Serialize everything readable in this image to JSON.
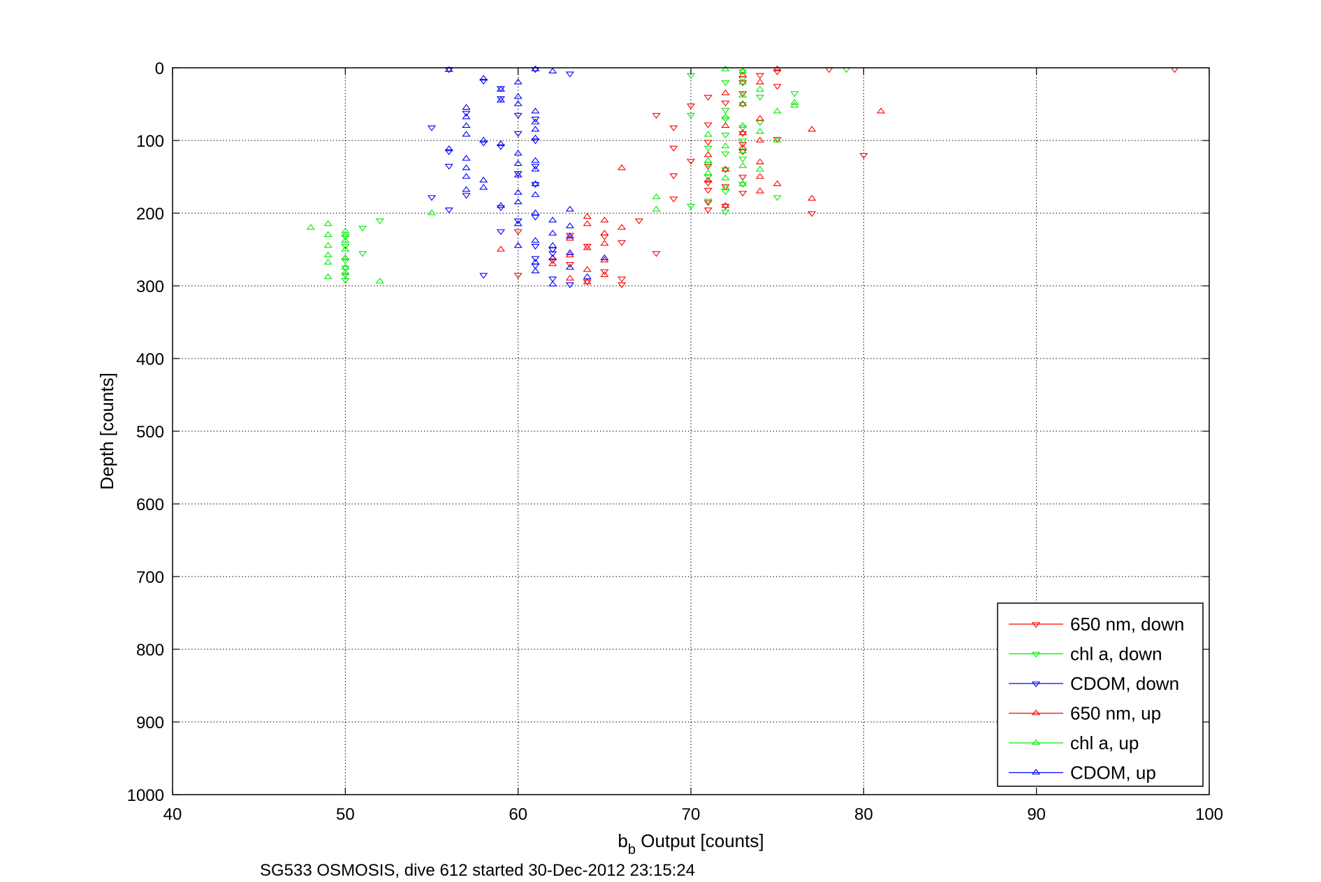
{
  "chart_data": {
    "type": "scatter",
    "title": "",
    "caption": "SG533 OSMOSIS, dive 612 started 30-Dec-2012 23:15:24",
    "xlabel": {
      "main": "b",
      "sub": "b",
      "rest": " Output [counts]"
    },
    "ylabel": "Depth [counts]",
    "xlim": [
      40,
      100
    ],
    "ylim": [
      0,
      1000
    ],
    "y_reversed": true,
    "grid": true,
    "x_ticks": [
      "40",
      "50",
      "60",
      "70",
      "80",
      "90",
      "100"
    ],
    "y_ticks": [
      "0",
      "100",
      "200",
      "300",
      "400",
      "500",
      "600",
      "700",
      "800",
      "900",
      "1000"
    ],
    "legend_position": "bottom-right",
    "series": [
      {
        "name": "650 nm, down",
        "color": "#ff0000",
        "marker": "triangle-down",
        "points": [
          [
            56,
            2
          ],
          [
            75,
            5
          ],
          [
            78,
            2
          ],
          [
            98,
            2
          ],
          [
            74,
            10
          ],
          [
            73,
            20
          ],
          [
            75,
            25
          ],
          [
            73,
            35
          ],
          [
            71,
            40
          ],
          [
            72,
            48
          ],
          [
            70,
            52
          ],
          [
            68,
            65
          ],
          [
            71,
            78
          ],
          [
            69,
            82
          ],
          [
            73,
            90
          ],
          [
            75,
            98
          ],
          [
            71,
            102
          ],
          [
            73,
            105
          ],
          [
            69,
            110
          ],
          [
            73,
            115
          ],
          [
            80,
            120
          ],
          [
            70,
            128
          ],
          [
            71,
            135
          ],
          [
            72,
            140
          ],
          [
            69,
            148
          ],
          [
            73,
            150
          ],
          [
            71,
            158
          ],
          [
            72,
            163
          ],
          [
            71,
            168
          ],
          [
            73,
            172
          ],
          [
            69,
            180
          ],
          [
            71,
            185
          ],
          [
            72,
            190
          ],
          [
            77,
            200
          ],
          [
            71,
            195
          ],
          [
            60,
            225
          ],
          [
            67,
            210
          ],
          [
            63,
            230
          ],
          [
            64,
            245
          ],
          [
            66,
            240
          ],
          [
            68,
            255
          ],
          [
            62,
            265
          ],
          [
            63,
            270
          ],
          [
            65,
            280
          ],
          [
            66,
            290
          ],
          [
            60,
            285
          ],
          [
            64,
            294
          ],
          [
            66,
            298
          ],
          [
            65,
            232
          ]
        ]
      },
      {
        "name": "chl a, down",
        "color": "#00ee00",
        "marker": "triangle-down",
        "points": [
          [
            79,
            2
          ],
          [
            73,
            5
          ],
          [
            70,
            10
          ],
          [
            73,
            15
          ],
          [
            72,
            20
          ],
          [
            76,
            35
          ],
          [
            74,
            40
          ],
          [
            73,
            50
          ],
          [
            72,
            58
          ],
          [
            70,
            65
          ],
          [
            72,
            70
          ],
          [
            74,
            75
          ],
          [
            73,
            82
          ],
          [
            72,
            92
          ],
          [
            73,
            100
          ],
          [
            71,
            110
          ],
          [
            72,
            118
          ],
          [
            73,
            125
          ],
          [
            71,
            132
          ],
          [
            72,
            140
          ],
          [
            71,
            150
          ],
          [
            73,
            160
          ],
          [
            72,
            170
          ],
          [
            75,
            178
          ],
          [
            71,
            183
          ],
          [
            70,
            190
          ],
          [
            72,
            198
          ],
          [
            52,
            210
          ],
          [
            51,
            220
          ],
          [
            50,
            232
          ],
          [
            50,
            245
          ],
          [
            51,
            255
          ],
          [
            50,
            265
          ],
          [
            50,
            275
          ],
          [
            50,
            285
          ],
          [
            50,
            292
          ]
        ]
      },
      {
        "name": "CDOM, down",
        "color": "#0000ff",
        "marker": "triangle-down",
        "points": [
          [
            56,
            2
          ],
          [
            61,
            2
          ],
          [
            63,
            8
          ],
          [
            58,
            18
          ],
          [
            59,
            28
          ],
          [
            59,
            42
          ],
          [
            57,
            62
          ],
          [
            60,
            65
          ],
          [
            61,
            70
          ],
          [
            55,
            82
          ],
          [
            60,
            90
          ],
          [
            61,
            100
          ],
          [
            59,
            108
          ],
          [
            58,
            103
          ],
          [
            56,
            115
          ],
          [
            61,
            135
          ],
          [
            56,
            135
          ],
          [
            60,
            145
          ],
          [
            61,
            160
          ],
          [
            57,
            175
          ],
          [
            55,
            178
          ],
          [
            56,
            195
          ],
          [
            59,
            192
          ],
          [
            61,
            205
          ],
          [
            60,
            210
          ],
          [
            59,
            225
          ],
          [
            61,
            245
          ],
          [
            62,
            250
          ],
          [
            61,
            262
          ],
          [
            61,
            272
          ],
          [
            58,
            285
          ],
          [
            62,
            290
          ],
          [
            63,
            298
          ],
          [
            62,
            255
          ]
        ]
      },
      {
        "name": "650 nm, up",
        "color": "#ff0000",
        "marker": "triangle-up",
        "points": [
          [
            75,
            2
          ],
          [
            73,
            10
          ],
          [
            74,
            20
          ],
          [
            72,
            35
          ],
          [
            73,
            50
          ],
          [
            81,
            60
          ],
          [
            74,
            70
          ],
          [
            72,
            80
          ],
          [
            77,
            85
          ],
          [
            73,
            90
          ],
          [
            74,
            100
          ],
          [
            73,
            110
          ],
          [
            71,
            120
          ],
          [
            74,
            130
          ],
          [
            72,
            140
          ],
          [
            66,
            138
          ],
          [
            74,
            150
          ],
          [
            71,
            155
          ],
          [
            75,
            160
          ],
          [
            74,
            170
          ],
          [
            77,
            180
          ],
          [
            72,
            190
          ],
          [
            64,
            205
          ],
          [
            65,
            210
          ],
          [
            64,
            215
          ],
          [
            66,
            220
          ],
          [
            65,
            228
          ],
          [
            63,
            235
          ],
          [
            65,
            242
          ],
          [
            64,
            248
          ],
          [
            59,
            250
          ],
          [
            63,
            258
          ],
          [
            65,
            265
          ],
          [
            62,
            270
          ],
          [
            64,
            278
          ],
          [
            65,
            285
          ],
          [
            63,
            290
          ],
          [
            64,
            295
          ]
        ]
      },
      {
        "name": "chl a, up",
        "color": "#00ee00",
        "marker": "triangle-up",
        "points": [
          [
            72,
            2
          ],
          [
            73,
            5
          ],
          [
            73,
            20
          ],
          [
            74,
            30
          ],
          [
            73,
            38
          ],
          [
            76,
            48
          ],
          [
            76,
            52
          ],
          [
            75,
            60
          ],
          [
            72,
            68
          ],
          [
            73,
            80
          ],
          [
            74,
            88
          ],
          [
            71,
            92
          ],
          [
            75,
            100
          ],
          [
            72,
            108
          ],
          [
            73,
            115
          ],
          [
            71,
            128
          ],
          [
            73,
            135
          ],
          [
            74,
            140
          ],
          [
            71,
            145
          ],
          [
            72,
            152
          ],
          [
            73,
            160
          ],
          [
            72,
            165
          ],
          [
            68,
            178
          ],
          [
            68,
            195
          ],
          [
            55,
            200
          ],
          [
            49,
            215
          ],
          [
            48,
            220
          ],
          [
            50,
            225
          ],
          [
            49,
            230
          ],
          [
            50,
            238
          ],
          [
            49,
            245
          ],
          [
            50,
            250
          ],
          [
            49,
            258
          ],
          [
            50,
            262
          ],
          [
            49,
            268
          ],
          [
            50,
            275
          ],
          [
            50,
            282
          ],
          [
            49,
            288
          ],
          [
            52,
            294
          ],
          [
            50,
            230
          ]
        ]
      },
      {
        "name": "CDOM, up",
        "color": "#0000ff",
        "marker": "triangle-up",
        "points": [
          [
            61,
            2
          ],
          [
            62,
            5
          ],
          [
            56,
            3
          ],
          [
            58,
            15
          ],
          [
            60,
            20
          ],
          [
            59,
            30
          ],
          [
            60,
            40
          ],
          [
            59,
            45
          ],
          [
            60,
            50
          ],
          [
            57,
            55
          ],
          [
            61,
            60
          ],
          [
            57,
            68
          ],
          [
            61,
            75
          ],
          [
            57,
            80
          ],
          [
            61,
            85
          ],
          [
            57,
            92
          ],
          [
            61,
            97
          ],
          [
            58,
            100
          ],
          [
            59,
            105
          ],
          [
            56,
            112
          ],
          [
            60,
            118
          ],
          [
            57,
            125
          ],
          [
            61,
            128
          ],
          [
            60,
            132
          ],
          [
            57,
            138
          ],
          [
            61,
            140
          ],
          [
            60,
            148
          ],
          [
            57,
            150
          ],
          [
            58,
            155
          ],
          [
            61,
            160
          ],
          [
            58,
            165
          ],
          [
            57,
            168
          ],
          [
            60,
            172
          ],
          [
            61,
            175
          ],
          [
            60,
            185
          ],
          [
            59,
            190
          ],
          [
            63,
            195
          ],
          [
            61,
            200
          ],
          [
            60,
            215
          ],
          [
            62,
            210
          ],
          [
            63,
            218
          ],
          [
            62,
            228
          ],
          [
            63,
            232
          ],
          [
            61,
            238
          ],
          [
            62,
            245
          ],
          [
            60,
            245
          ],
          [
            63,
            255
          ],
          [
            62,
            262
          ],
          [
            61,
            268
          ],
          [
            63,
            275
          ],
          [
            61,
            280
          ],
          [
            65,
            262
          ],
          [
            64,
            288
          ],
          [
            62,
            298
          ]
        ]
      }
    ]
  }
}
